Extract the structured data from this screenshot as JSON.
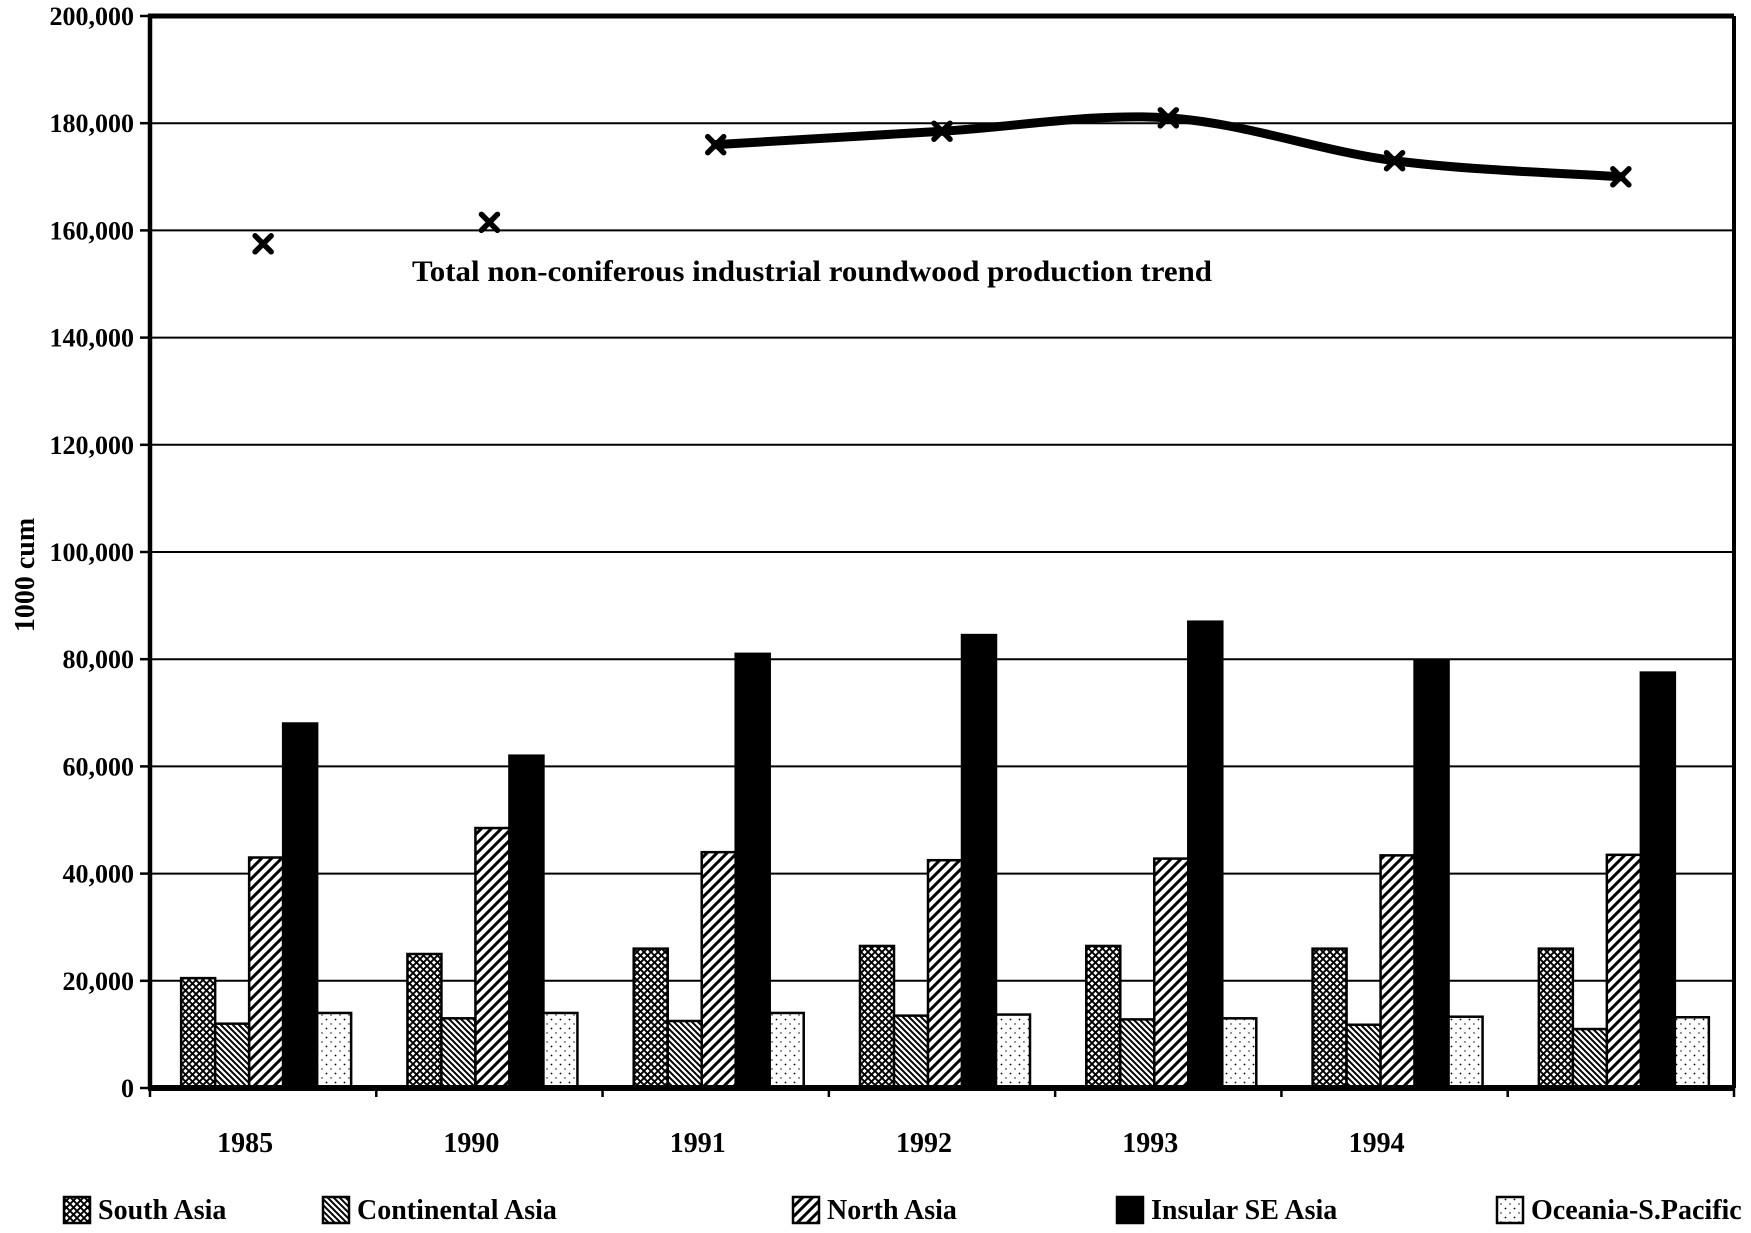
{
  "chart_data": {
    "type": "bar+line",
    "title": "Total non-coniferous industrial roundwood production trend",
    "ylabel": "1000 cum",
    "xlabel": "",
    "ylim": [
      0,
      200000
    ],
    "ytick_step": 20000,
    "y_tick_labels": [
      "0",
      "20,000",
      "40,000",
      "60,000",
      "80,000",
      "100,000",
      "120,000",
      "140,000",
      "160,000",
      "180,000",
      "200,000"
    ],
    "grid": true,
    "legend_position": "bottom",
    "categories": [
      "1985",
      "1990",
      "1991",
      "1992",
      "1993",
      "1994",
      ""
    ],
    "series": [
      {
        "name": "South Asia",
        "pattern": "crosshatch",
        "values": [
          20500,
          25000,
          26000,
          26500,
          26500,
          26000,
          26000
        ]
      },
      {
        "name": "Continental Asia",
        "pattern": "backslash",
        "values": [
          12000,
          13000,
          12500,
          13500,
          12800,
          11800,
          11000
        ]
      },
      {
        "name": "North Asia",
        "pattern": "slash",
        "values": [
          43000,
          48500,
          44000,
          42500,
          42800,
          43400,
          43500
        ]
      },
      {
        "name": "Insular SE Asia",
        "pattern": "solid",
        "values": [
          68000,
          62000,
          81000,
          84500,
          87000,
          79800,
          77500
        ]
      },
      {
        "name": "Oceania-S.Pacific",
        "pattern": "dots",
        "values": [
          14000,
          14000,
          14000,
          13700,
          13000,
          13300,
          13200
        ]
      }
    ],
    "line_series": {
      "name": "Total non-coniferous industrial roundwood production trend",
      "marker": "x",
      "values": [
        157500,
        161500,
        176000,
        178500,
        181000,
        173000,
        170000
      ],
      "line_connects_from_index": 2
    },
    "colors": {
      "ink": "#000000",
      "paper": "#ffffff"
    }
  }
}
